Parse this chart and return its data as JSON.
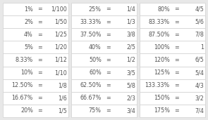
{
  "bg_color": "#e8e8e8",
  "cell_bg": "#ffffff",
  "border_color": "#d0d0d0",
  "text_color": "#555555",
  "font_size": 5.8,
  "figsize": [
    2.95,
    1.71
  ],
  "dpi": 100,
  "columns": [
    [
      [
        "1%",
        "=",
        "1/100"
      ],
      [
        "2%",
        "=",
        "1/50"
      ],
      [
        "4%",
        "=",
        "1/25"
      ],
      [
        "5%",
        "=",
        "1/20"
      ],
      [
        "8.33%",
        "=",
        "1/12"
      ],
      [
        "10%",
        "=",
        "1/10"
      ],
      [
        "12.50%",
        "=",
        "1/8"
      ],
      [
        "16.67%",
        "=",
        "1/6"
      ],
      [
        "20%",
        "=",
        "1/5"
      ]
    ],
    [
      [
        "25%",
        "=",
        "1/4"
      ],
      [
        "33.33%",
        "=",
        "1/3"
      ],
      [
        "37.50%",
        "=",
        "3/8"
      ],
      [
        "40%",
        "=",
        "2/5"
      ],
      [
        "50%",
        "=",
        "1/2"
      ],
      [
        "60%",
        "=",
        "3/5"
      ],
      [
        "62.50%",
        "=",
        "5/8"
      ],
      [
        "66.67%",
        "=",
        "2/3"
      ],
      [
        "75%",
        "=",
        "3/4"
      ]
    ],
    [
      [
        "80%",
        "=",
        "4/5"
      ],
      [
        "83.33%",
        "=",
        "5/6"
      ],
      [
        "87.50%",
        "=",
        "7/8"
      ],
      [
        "100%",
        "=",
        "1"
      ],
      [
        "120%",
        "=",
        "6/5"
      ],
      [
        "125%",
        "=",
        "5/4"
      ],
      [
        "133.33%",
        "=",
        "4/3"
      ],
      [
        "150%",
        "=",
        "3/2"
      ],
      [
        "175%",
        "=",
        "7/4"
      ]
    ]
  ]
}
